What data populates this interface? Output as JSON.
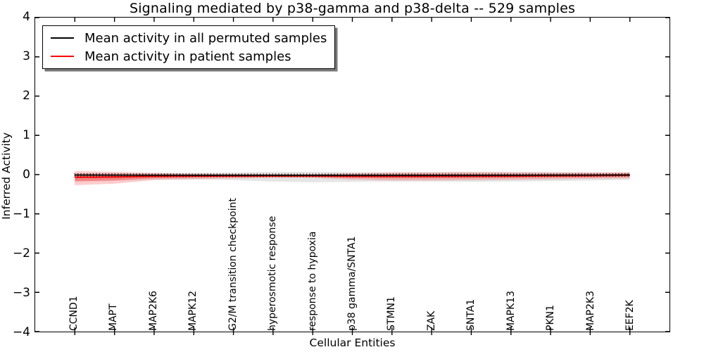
{
  "chart_data": {
    "type": "line",
    "title": "Signaling mediated by p38-gamma and p38-delta -- 529 samples",
    "xlabel": "Cellular Entities",
    "ylabel": "Inferred Activity",
    "xlim": [
      -1,
      15
    ],
    "ylim": [
      -4,
      4
    ],
    "yticks": [
      4,
      3,
      2,
      1,
      0,
      -1,
      -2,
      -3,
      -4
    ],
    "grid": false,
    "legend_position": "upper left",
    "categories": [
      "CCND1",
      "MAPT",
      "MAP2K6",
      "MAPK12",
      "G2/M transition checkpoint",
      "hyperosmotic response",
      "response to hypoxia",
      "p38 gamma/SNTA1",
      "STMN1",
      "ZAK",
      "SNTA1",
      "MAPK13",
      "PKN1",
      "MAP2K3",
      "EEF2K"
    ],
    "series": [
      {
        "name": "Mean activity in all permuted samples",
        "color": "#000000",
        "style": "solid line with small vertical tick markers",
        "values": [
          -0.01,
          -0.012,
          -0.015,
          -0.018,
          -0.018,
          -0.018,
          -0.018,
          -0.018,
          -0.018,
          -0.018,
          -0.018,
          -0.016,
          -0.014,
          -0.012,
          -0.008
        ]
      },
      {
        "name": "Mean activity in patient samples",
        "color": "#ff0000",
        "style": "solid",
        "values": [
          -0.07,
          -0.06,
          -0.045,
          -0.038,
          -0.036,
          -0.035,
          -0.036,
          -0.042,
          -0.045,
          -0.044,
          -0.04,
          -0.038,
          -0.032,
          -0.028,
          -0.018
        ]
      }
    ],
    "bands": [
      {
        "name": "permuted samples activity range",
        "color": "rgba(0,0,0,0.10)",
        "upper": [
          0.035,
          0.035,
          0.038,
          0.045,
          0.055,
          0.07,
          0.072,
          0.062,
          0.055,
          0.06,
          0.07,
          0.07,
          0.062,
          0.053,
          0.045
        ],
        "lower": [
          -0.175,
          -0.16,
          -0.125,
          -0.125,
          -0.142,
          -0.178,
          -0.195,
          -0.185,
          -0.177,
          -0.177,
          -0.185,
          -0.177,
          -0.167,
          -0.15,
          -0.133
        ]
      },
      {
        "name": "patient samples activity range",
        "color": "rgba(255,0,0,0.20)",
        "upper": [
          0.09,
          0.07,
          0.045,
          0.027,
          0.018,
          0.01,
          0.012,
          0.035,
          0.053,
          0.06,
          0.062,
          0.055,
          0.053,
          0.055,
          0.062
        ],
        "lower": [
          -0.27,
          -0.23,
          -0.14,
          -0.115,
          -0.098,
          -0.082,
          -0.085,
          -0.125,
          -0.15,
          -0.15,
          -0.142,
          -0.133,
          -0.122,
          -0.106,
          -0.098
        ]
      }
    ]
  }
}
